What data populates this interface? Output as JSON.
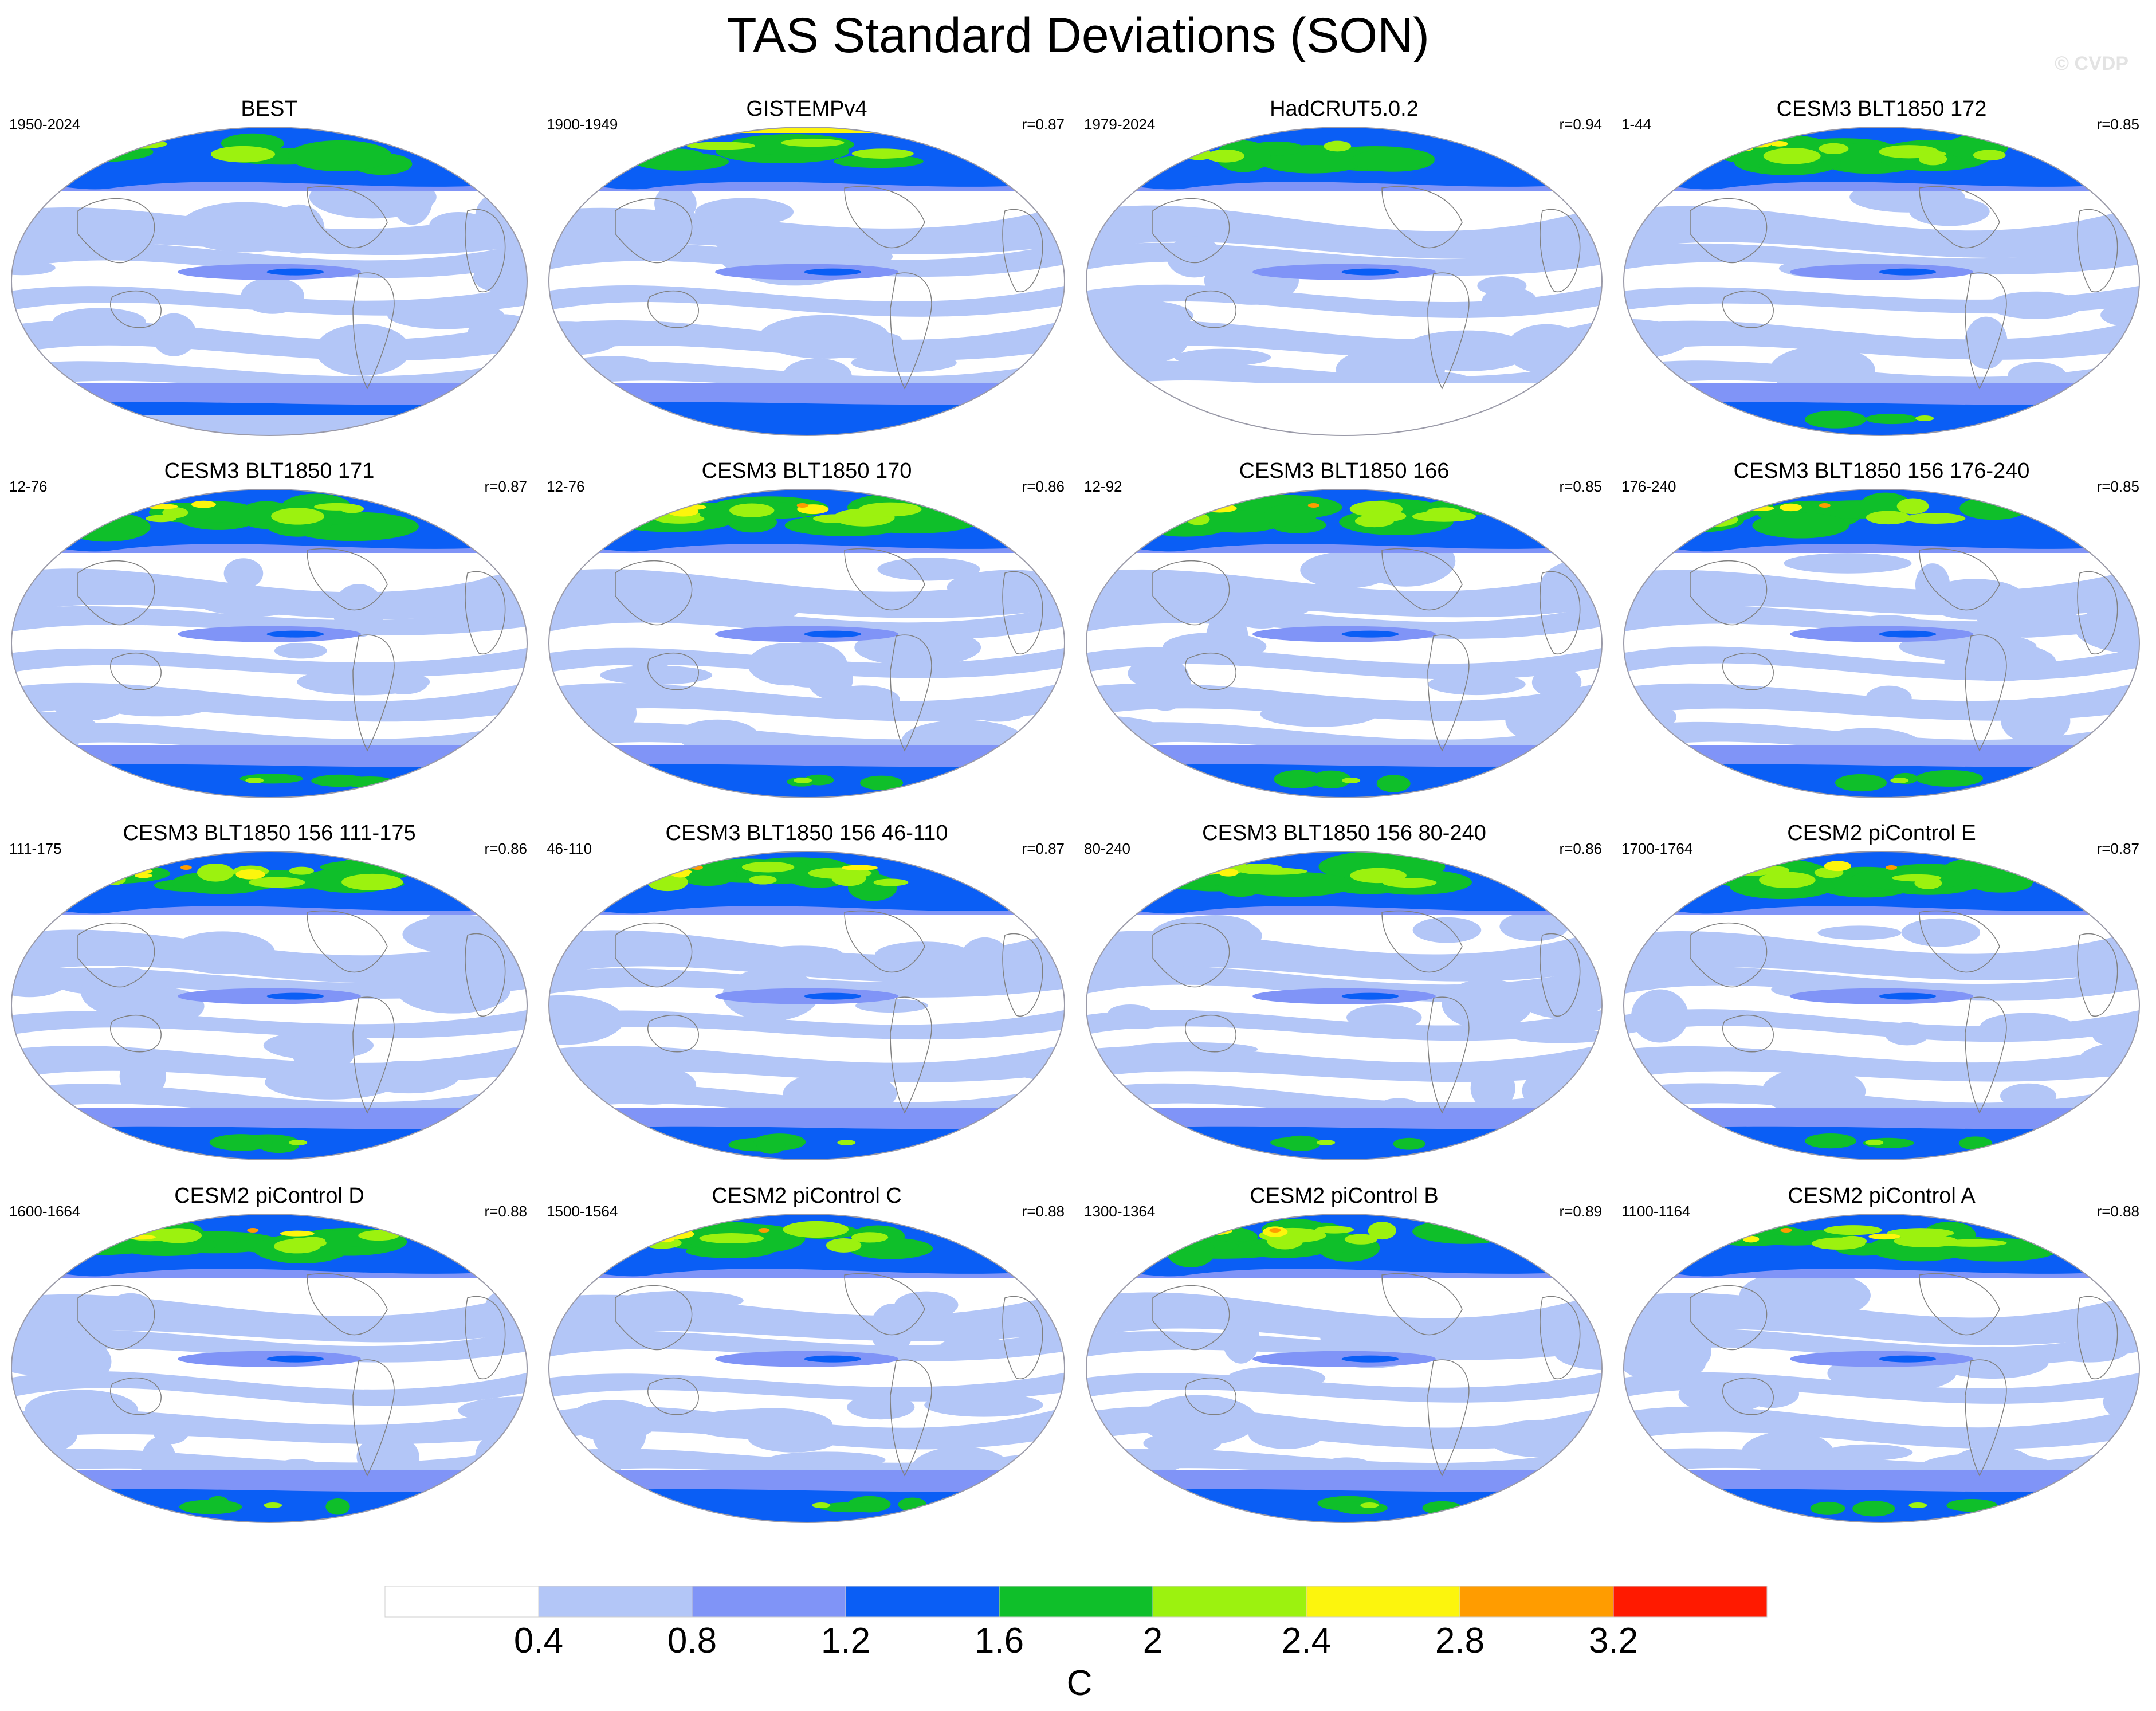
{
  "title": "TAS Standard Deviations (SON)",
  "watermark": "© CVDP",
  "panels": [
    {
      "title": "BEST",
      "period": "1950-2024",
      "r": ""
    },
    {
      "title": "GISTEMPv4",
      "period": "1900-1949",
      "r": "r=0.87"
    },
    {
      "title": "HadCRUT5.0.2",
      "period": "1979-2024",
      "r": "r=0.94"
    },
    {
      "title": "CESM3 BLT1850 172",
      "period": "1-44",
      "r": "r=0.85"
    },
    {
      "title": "CESM3 BLT1850 171",
      "period": "12-76",
      "r": "r=0.87"
    },
    {
      "title": "CESM3 BLT1850 170",
      "period": "12-76",
      "r": "r=0.86"
    },
    {
      "title": "CESM3 BLT1850 166",
      "period": "12-92",
      "r": "r=0.85"
    },
    {
      "title": "CESM3 BLT1850 156 176-240",
      "period": "176-240",
      "r": "r=0.85"
    },
    {
      "title": "CESM3 BLT1850 156 111-175",
      "period": "111-175",
      "r": "r=0.86"
    },
    {
      "title": "CESM3 BLT1850 156 46-110",
      "period": "46-110",
      "r": "r=0.87"
    },
    {
      "title": "CESM3 BLT1850 156 80-240",
      "period": "80-240",
      "r": "r=0.86"
    },
    {
      "title": "CESM2 piControl E",
      "period": "1700-1764",
      "r": "r=0.87"
    },
    {
      "title": "CESM2 piControl D",
      "period": "1600-1664",
      "r": "r=0.88"
    },
    {
      "title": "CESM2 piControl C",
      "period": "1500-1564",
      "r": "r=0.88"
    },
    {
      "title": "CESM2 piControl B",
      "period": "1300-1364",
      "r": "r=0.89"
    },
    {
      "title": "CESM2 piControl A",
      "period": "1100-1164",
      "r": "r=0.88"
    }
  ],
  "colorbar": {
    "units": "C",
    "levels": [
      "0.4",
      "0.8",
      "1.2",
      "1.6",
      "2",
      "2.4",
      "2.8",
      "3.2"
    ],
    "colors": [
      "#ffffff",
      "#b3c6f7",
      "#8094f7",
      "#0a5ef5",
      "#0fbf2a",
      "#9cf20f",
      "#fcf50d",
      "#ff9c00",
      "#ff1a00"
    ]
  },
  "colors": {
    "land_outline": "#808080",
    "map_border": "#9a9aa8"
  }
}
